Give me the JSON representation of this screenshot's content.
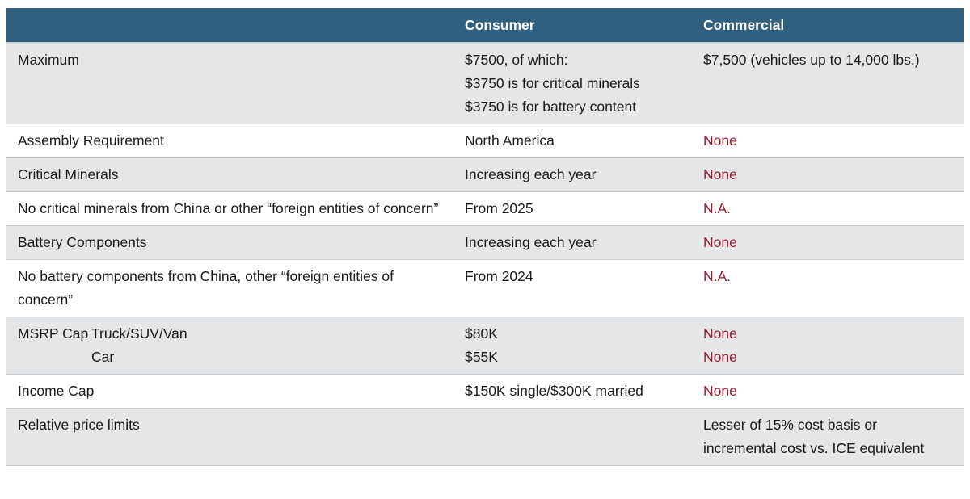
{
  "colors": {
    "header_bg": "#305F80",
    "header_text": "#FFFFFF",
    "row_alt_bg": "#E4E6E8",
    "row_bg": "#FFFFFF",
    "accent_red": "#9B1B30",
    "body_text": "#1C1C1C",
    "row_border": "#C8CBCE"
  },
  "table": {
    "columns": {
      "c1": "",
      "c2": "Consumer",
      "c3": "Commercial"
    },
    "rows": [
      {
        "label": "Maximum",
        "consumer": [
          "$7500, of which:",
          "$3750 is for critical minerals",
          "$3750 is for battery content"
        ],
        "commercial": [
          "$7,500 (vehicles up to 14,000 lbs.)"
        ]
      },
      {
        "label": "Assembly Requirement",
        "consumer": [
          "North America"
        ],
        "commercial": [
          "None"
        ]
      },
      {
        "label": "Critical Minerals",
        "consumer": [
          "Increasing each year"
        ],
        "commercial": [
          "None"
        ]
      },
      {
        "label": "No critical minerals from China or other “foreign entities of concern”",
        "consumer": [
          "From 2025"
        ],
        "commercial": [
          "N.A."
        ]
      },
      {
        "label": "Battery Components",
        "consumer": [
          "Increasing each year"
        ],
        "commercial": [
          "None"
        ]
      },
      {
        "label": "No battery components from China, other “foreign entities of concern”",
        "consumer": [
          "From 2024"
        ],
        "commercial": [
          "N.A."
        ]
      },
      {
        "label": "MSRP Cap",
        "sublabels": [
          "Truck/SUV/Van",
          "Car"
        ],
        "consumer": [
          "$80K",
          "$55K"
        ],
        "commercial": [
          "None",
          "None"
        ]
      },
      {
        "label": "Income Cap",
        "consumer": [
          "$150K single/$300K married"
        ],
        "commercial": [
          "None"
        ]
      },
      {
        "label": "Relative price limits",
        "consumer": [],
        "commercial": [
          "Lesser of 15% cost basis or",
          "incremental cost vs. ICE equivalent"
        ]
      }
    ]
  }
}
